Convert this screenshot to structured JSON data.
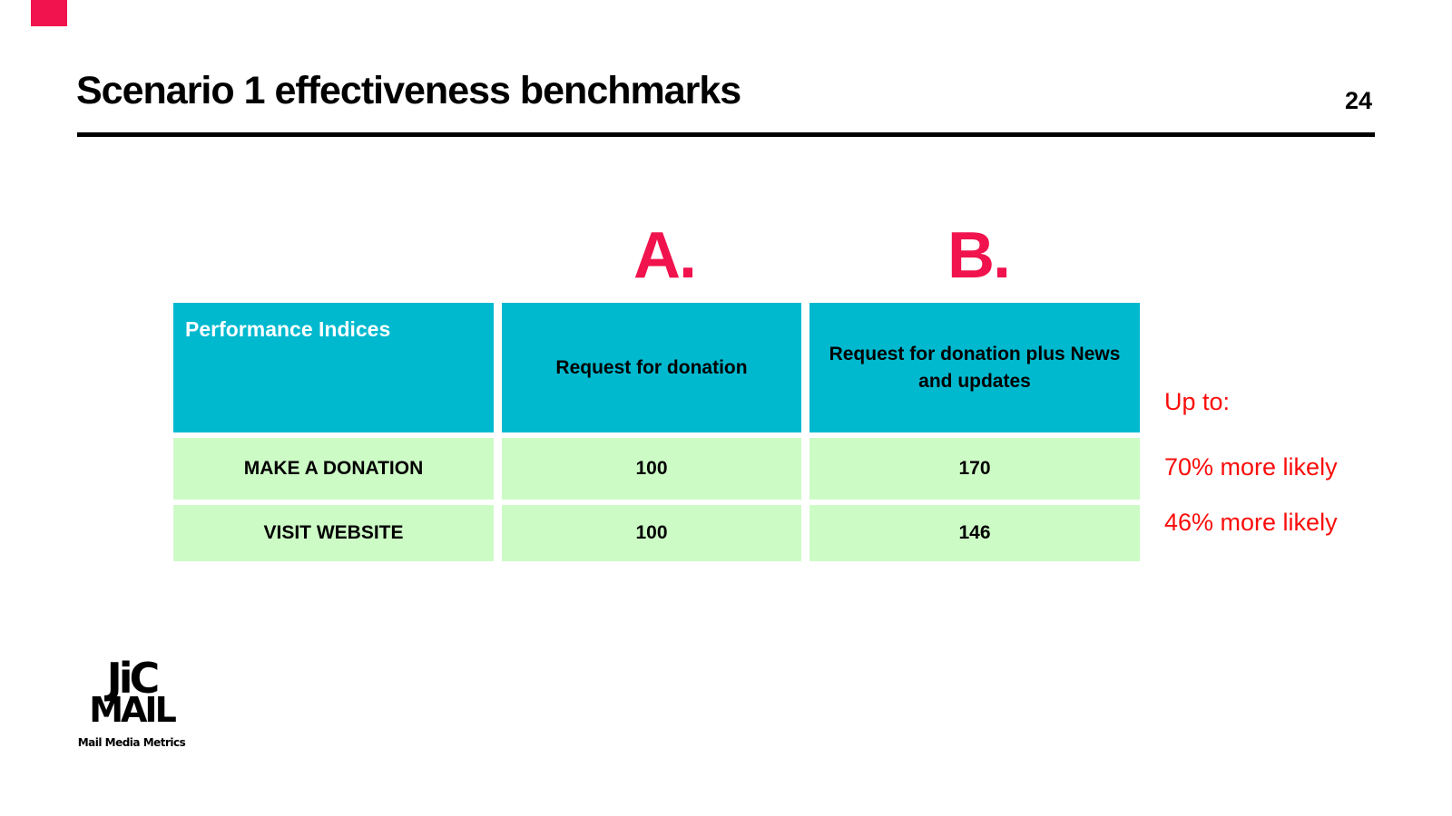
{
  "slide": {
    "title": "Scenario 1 effectiveness benchmarks",
    "page_number": "24",
    "column_letter_a": "A.",
    "column_letter_b": "B.",
    "table": {
      "headers": [
        "Performance Indices",
        "Request for donation",
        "Request for donation plus News and updates"
      ],
      "rows": [
        {
          "label": "MAKE A DONATION",
          "request_for_donation": "100",
          "request_plus_news": "170"
        },
        {
          "label": "VISIT WEBSITE",
          "request_for_donation": "100",
          "request_plus_news": "146"
        }
      ]
    },
    "annotations": {
      "up_to": "Up to:",
      "make_a_donation": "70% more likely",
      "visit_website": "46% more likely"
    },
    "logo": {
      "top": "JiC",
      "bottom": "MAIL",
      "tagline": "Mail Media Metrics"
    },
    "colors": {
      "header_teal": "#00B9CF",
      "row_green": "#CDFBC6",
      "accent_pink": "#F0134D",
      "annotation_red": "#FA0D0B",
      "text_black": "#000000",
      "header_text_white": "#FFFFFF"
    }
  }
}
